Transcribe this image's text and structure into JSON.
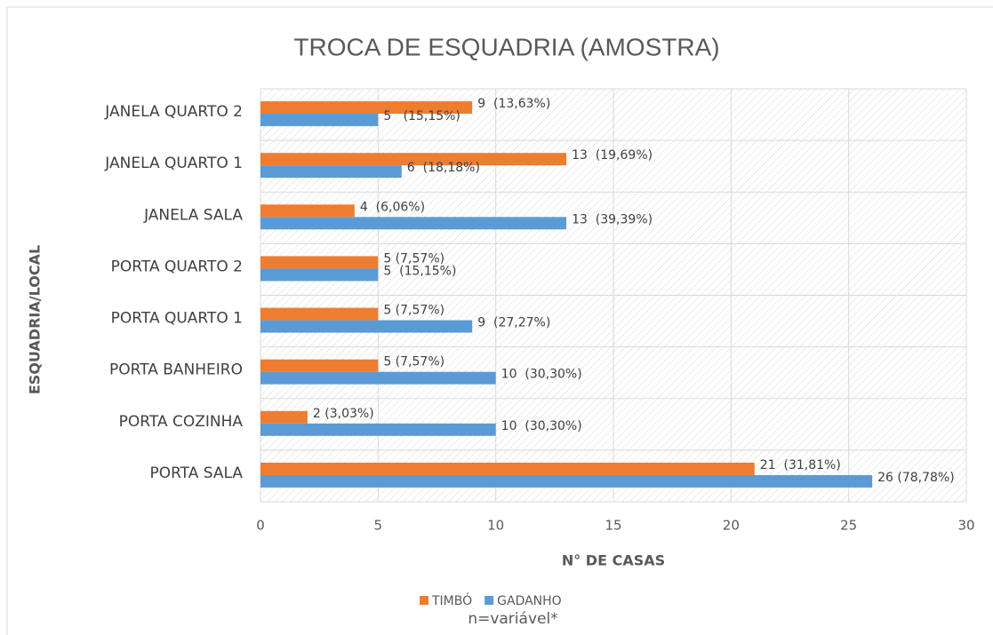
{
  "chart_data": {
    "type": "bar",
    "orientation": "horizontal",
    "title": "TROCA DE ESQUADRIA (AMOSTRA)",
    "x_label": "N° DE CASAS",
    "y_label": "ESQUADRIA/LOCAL",
    "note": "n=variável*",
    "categories": [
      "JANELA QUARTO 2",
      "JANELA QUARTO 1",
      "JANELA SALA",
      "PORTA QUARTO 2",
      "PORTA QUARTO 1",
      "PORTA BANHEIRO",
      "PORTA COZINHA",
      "PORTA SALA"
    ],
    "series": [
      {
        "name": "TIMBÓ",
        "color": "#ed7d31",
        "values": [
          9,
          13,
          4,
          5,
          5,
          5,
          2,
          21
        ],
        "value_labels": [
          "9  (13,63%)",
          "13  (19,69%)",
          "4  (6,06%)",
          "5 (7,57%)",
          "5 (7,57%)",
          "5 (7,57%)",
          "2 (3,03%)",
          "21  (31,81%)"
        ]
      },
      {
        "name": "GADANHO",
        "color": "#5b9bd5",
        "values": [
          5,
          6,
          13,
          5,
          9,
          10,
          10,
          26
        ],
        "value_labels": [
          "5   (15,15%)",
          "6  (18,18%)",
          "13  (39,39%)",
          "5  (15,15%)",
          "9  (27,27%)",
          "10  (30,30%)",
          "10  (30,30%)",
          "26 (78,78%)"
        ]
      }
    ],
    "xlim": [
      0,
      30
    ],
    "xticks": [
      0,
      5,
      10,
      15,
      20,
      25,
      30
    ],
    "grid": true,
    "legend": "bottom"
  }
}
